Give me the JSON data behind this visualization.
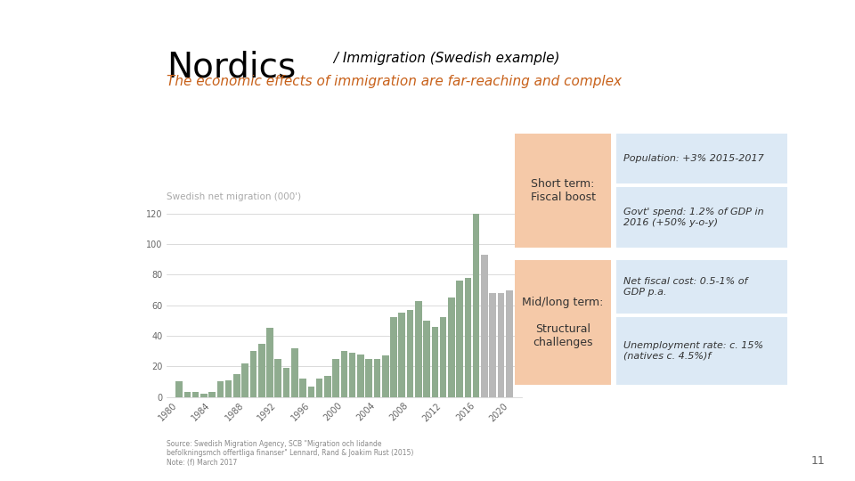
{
  "title_large": "Nordics",
  "title_small": " / Immigration (Swedish example)",
  "subtitle": "The economic effects of immigration are far-reaching and complex",
  "chart_label": "Swedish net migration (000')",
  "bar_years": [
    1980,
    1981,
    1982,
    1983,
    1984,
    1985,
    1986,
    1987,
    1988,
    1989,
    1990,
    1991,
    1992,
    1993,
    1994,
    1995,
    1996,
    1997,
    1998,
    1999,
    2000,
    2001,
    2002,
    2003,
    2004,
    2005,
    2006,
    2007,
    2008,
    2009,
    2010,
    2011,
    2012,
    2013,
    2014,
    2015,
    2016,
    2017,
    2018,
    2019,
    2020
  ],
  "bar_values": [
    10,
    3,
    3,
    2,
    3,
    10,
    11,
    15,
    22,
    30,
    35,
    45,
    25,
    19,
    32,
    12,
    7,
    12,
    14,
    25,
    30,
    29,
    28,
    25,
    25,
    27,
    52,
    55,
    57,
    63,
    50,
    46,
    52,
    65,
    76,
    78,
    120,
    93,
    68,
    68,
    70
  ],
  "bar_colors_green": [
    1980,
    1981,
    1982,
    1983,
    1984,
    1985,
    1986,
    1987,
    1988,
    1989,
    1990,
    1991,
    1992,
    1993,
    1994,
    1995,
    1996,
    1997,
    1998,
    1999,
    2000,
    2001,
    2002,
    2003,
    2004,
    2005,
    2006,
    2007,
    2008,
    2009,
    2010,
    2011,
    2012,
    2013,
    2014,
    2015,
    2016
  ],
  "bar_colors_gray": [
    2017,
    2018,
    2019,
    2020
  ],
  "green_color": "#8fac8f",
  "gray_color": "#b8b8b8",
  "yticks": [
    0,
    20,
    40,
    60,
    80,
    100,
    120
  ],
  "xtick_years": [
    "1980",
    "1984",
    "1988",
    "1992",
    "1996",
    "2000",
    "2004",
    "2008",
    "2012",
    "2016",
    "2020"
  ],
  "box1_color": "#f5c9a8",
  "box2_color": "#f5c9a8",
  "info1a": "Population: +3% 2015-2017",
  "info1b": "Govt' spend: 1.2% of GDP in\n2016 (+50% y-o-y)",
  "info2a": "Net fiscal cost: 0.5-1% of\nGDP p.a.",
  "info2b": "Unemployment rate: c. 15%\n(natives c. 4.5%)f",
  "info_bg_color": "#dce9f5",
  "source_text": "Source: Swedish Migration Agency, SCB \"Migration och lidande\nbefolkningsmch offertliga finanser\" Lennard, Rand & Joakim Rust (2015)\nNote: (f) March 2017",
  "page_number": "11",
  "bg_color": "#ffffff",
  "title_color": "#000000",
  "subtitle_color": "#c8611a",
  "chart_label_color": "#aaaaaa"
}
